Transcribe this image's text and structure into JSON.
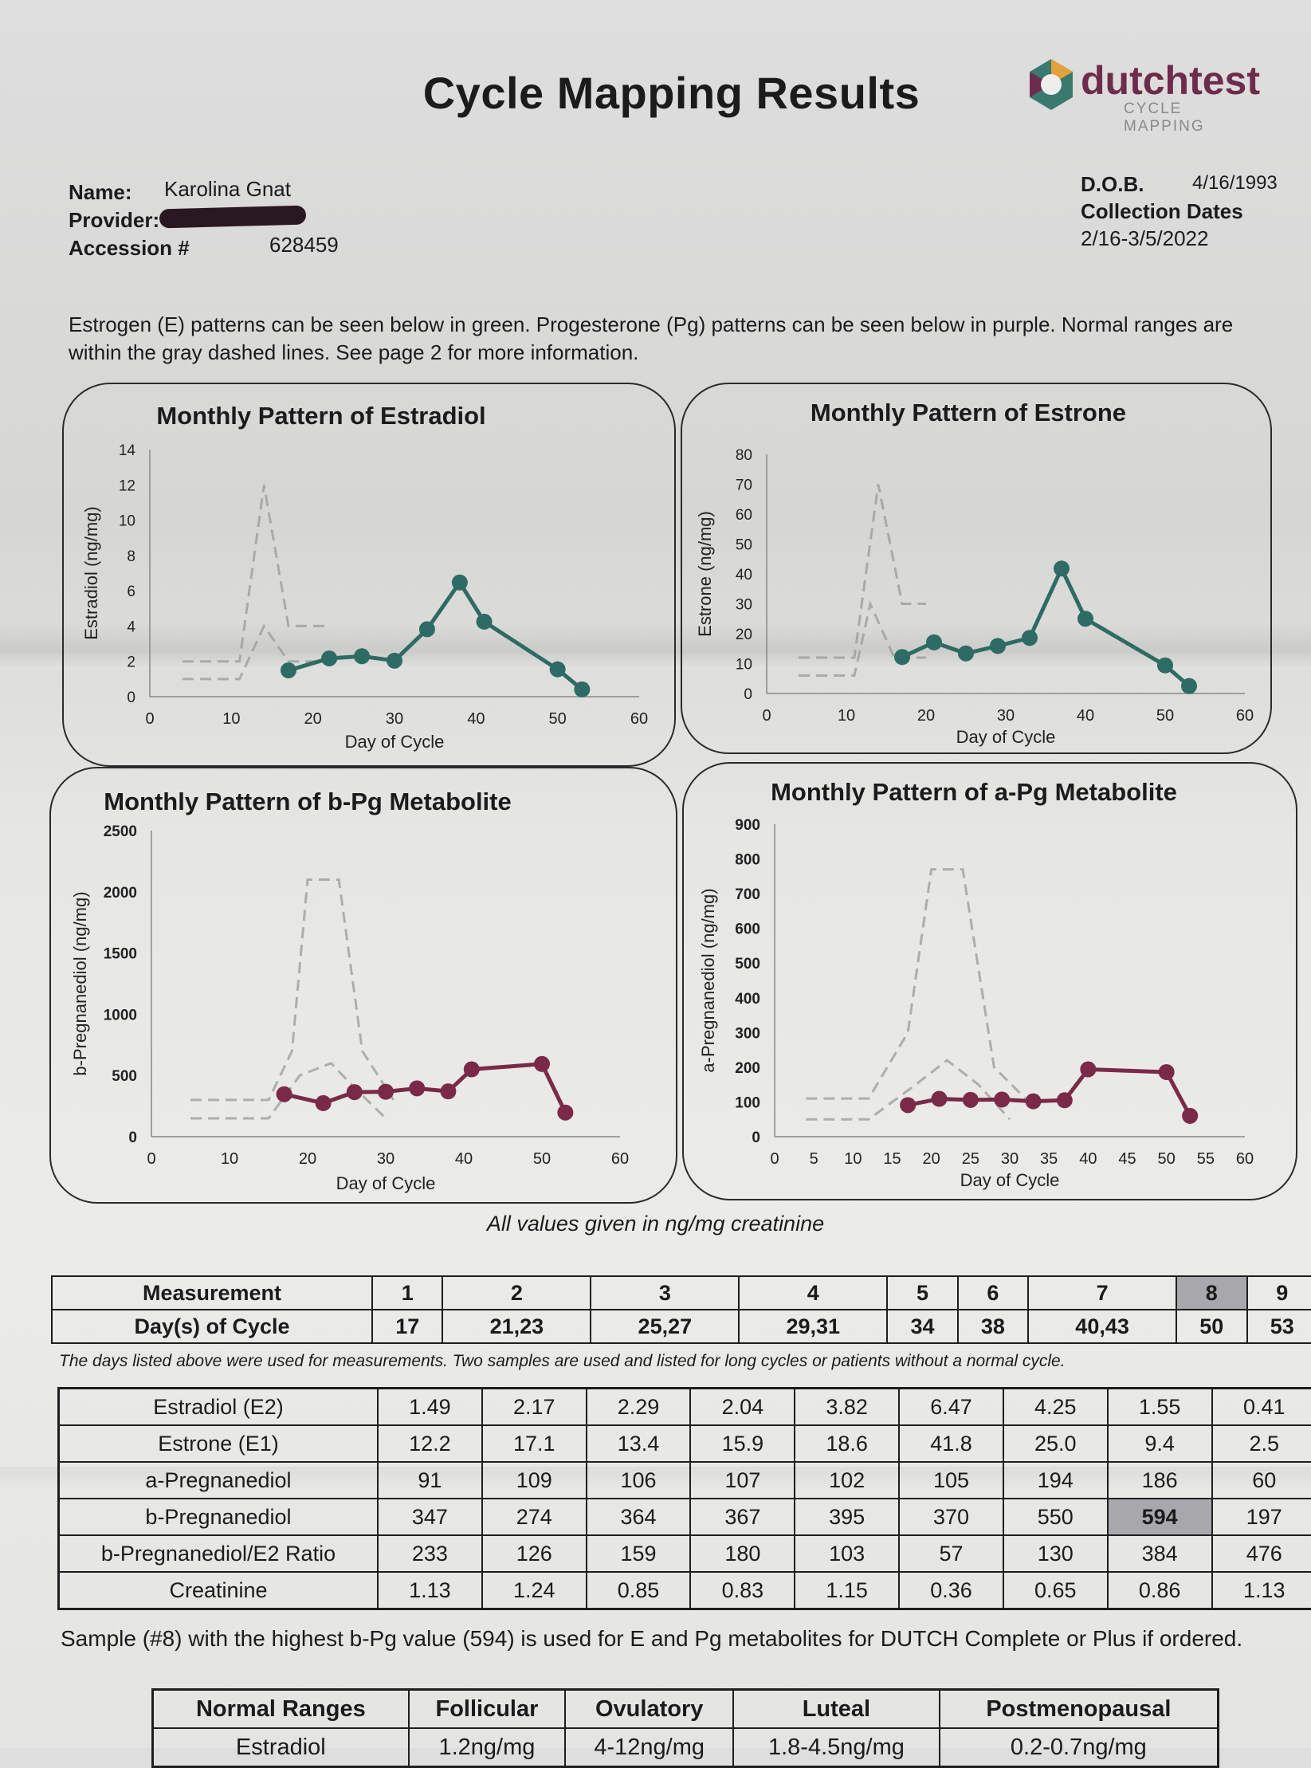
{
  "header": {
    "title": "Cycle Mapping Results",
    "logo_text": "dutchtest",
    "logo_sub": "CYCLE MAPPING"
  },
  "patient": {
    "name_label": "Name:",
    "name": "Karolina Gnat",
    "provider_label": "Provider:",
    "accession_label": "Accession #",
    "accession": "628459",
    "dob_label": "D.O.B.",
    "dob": "4/16/1993",
    "collection_label": "Collection Dates",
    "collection_dates": "2/16-3/5/2022"
  },
  "intro_text": "Estrogen (E) patterns can be seen below in green. Progesterone (Pg) patterns can be seen below in purple. Normal ranges are within the gray dashed lines. See page 2 for more information.",
  "colors": {
    "estrogen": "#2e6b64",
    "progesterone": "#7a2a48",
    "range": "#9a9a9a"
  },
  "chart_data": [
    {
      "type": "line",
      "title": "Monthly Pattern of Estradiol",
      "xlabel": "Day of Cycle",
      "ylabel": "Estradiol (ng/mg)",
      "xlim": [
        0,
        60
      ],
      "ylim": [
        0,
        14
      ],
      "xticks": [
        0,
        10,
        20,
        30,
        40,
        50,
        60
      ],
      "yticks": [
        0,
        2,
        4,
        6,
        8,
        10,
        12,
        14
      ],
      "x": [
        17,
        22,
        26,
        30,
        34,
        38,
        41,
        50,
        53
      ],
      "values": [
        1.49,
        2.17,
        2.29,
        2.04,
        3.82,
        6.47,
        4.25,
        1.55,
        0.41
      ],
      "range_upper": [
        [
          4,
          2
        ],
        [
          11,
          2
        ],
        [
          14,
          12
        ],
        [
          17,
          4
        ],
        [
          22,
          4
        ]
      ],
      "range_lower": [
        [
          4,
          1
        ],
        [
          11,
          1
        ],
        [
          14,
          4
        ],
        [
          17,
          2
        ],
        [
          22,
          2
        ]
      ]
    },
    {
      "type": "line",
      "title": "Monthly Pattern of Estrone",
      "xlabel": "Day of Cycle",
      "ylabel": "Estrone (ng/mg)",
      "xlim": [
        0,
        60
      ],
      "ylim": [
        0,
        80
      ],
      "xticks": [
        0,
        10,
        20,
        30,
        40,
        50,
        60
      ],
      "yticks": [
        0,
        10,
        20,
        30,
        40,
        50,
        60,
        70,
        80
      ],
      "x": [
        17,
        21,
        25,
        29,
        33,
        37,
        40,
        50,
        53
      ],
      "values": [
        12.2,
        17.1,
        13.4,
        15.9,
        18.6,
        41.8,
        25.0,
        9.4,
        2.5
      ],
      "range_upper": [
        [
          4,
          12
        ],
        [
          11,
          12
        ],
        [
          14,
          70
        ],
        [
          17,
          30
        ],
        [
          20,
          30
        ]
      ],
      "range_lower": [
        [
          4,
          6
        ],
        [
          11,
          6
        ],
        [
          13,
          30
        ],
        [
          16,
          12
        ],
        [
          20,
          12
        ]
      ]
    },
    {
      "type": "line",
      "title": "Monthly Pattern of b-Pg Metabolite",
      "xlabel": "Day of Cycle",
      "ylabel": "b-Pregnanediol (ng/mg)",
      "xlim": [
        0,
        60
      ],
      "ylim": [
        0,
        2500
      ],
      "xticks": [
        0,
        10,
        20,
        30,
        40,
        50,
        60
      ],
      "yticks": [
        0,
        500,
        1000,
        1500,
        2000,
        2500
      ],
      "x": [
        17,
        22,
        26,
        30,
        34,
        38,
        41,
        50,
        53
      ],
      "values": [
        347,
        274,
        364,
        367,
        395,
        370,
        550,
        594,
        197
      ],
      "range_upper": [
        [
          5,
          300
        ],
        [
          15,
          300
        ],
        [
          18,
          700
        ],
        [
          20,
          2100
        ],
        [
          24,
          2100
        ],
        [
          27,
          700
        ],
        [
          31,
          300
        ]
      ],
      "range_lower": [
        [
          5,
          150
        ],
        [
          15,
          150
        ],
        [
          19,
          500
        ],
        [
          23,
          600
        ],
        [
          26,
          400
        ],
        [
          30,
          150
        ]
      ]
    },
    {
      "type": "line",
      "title": "Monthly Pattern of a-Pg Metabolite",
      "xlabel": "Day of Cycle",
      "ylabel": "a-Pregnanediol (ng/mg)",
      "xlim": [
        0,
        60
      ],
      "ylim": [
        0,
        900
      ],
      "xticks": [
        0,
        5,
        10,
        15,
        20,
        25,
        30,
        35,
        40,
        45,
        50,
        55,
        60
      ],
      "yticks": [
        0,
        100,
        200,
        300,
        400,
        500,
        600,
        700,
        800,
        900
      ],
      "x": [
        17,
        21,
        25,
        29,
        33,
        37,
        40,
        50,
        53
      ],
      "values": [
        91,
        109,
        106,
        107,
        102,
        105,
        194,
        186,
        60
      ],
      "range_upper": [
        [
          4,
          110
        ],
        [
          12,
          110
        ],
        [
          17,
          300
        ],
        [
          20,
          770
        ],
        [
          24,
          770
        ],
        [
          28,
          200
        ],
        [
          32,
          110
        ]
      ],
      "range_lower": [
        [
          4,
          50
        ],
        [
          12,
          50
        ],
        [
          18,
          150
        ],
        [
          22,
          220
        ],
        [
          26,
          150
        ],
        [
          30,
          50
        ]
      ]
    }
  ],
  "unit_note": "All values given in ng/mg creatinine",
  "measurement_table": {
    "row1": [
      "Measurement",
      "1",
      "2",
      "3",
      "4",
      "5",
      "6",
      "7",
      "8",
      "9"
    ],
    "row2": [
      "Day(s) of Cycle",
      "17",
      "21,23",
      "25,27",
      "29,31",
      "34",
      "38",
      "40,43",
      "50",
      "53"
    ]
  },
  "days_note": "The days listed above were used for measurements. Two samples are used and listed for long cycles or patients without a normal cycle.",
  "values_table": [
    [
      "Estradiol (E2)",
      "1.49",
      "2.17",
      "2.29",
      "2.04",
      "3.82",
      "6.47",
      "4.25",
      "1.55",
      "0.41"
    ],
    [
      "Estrone (E1)",
      "12.2",
      "17.1",
      "13.4",
      "15.9",
      "18.6",
      "41.8",
      "25.0",
      "9.4",
      "2.5"
    ],
    [
      "a-Pregnanediol",
      "91",
      "109",
      "106",
      "107",
      "102",
      "105",
      "194",
      "186",
      "60"
    ],
    [
      "b-Pregnanediol",
      "347",
      "274",
      "364",
      "367",
      "395",
      "370",
      "550",
      "594",
      "197"
    ],
    [
      "b-Pregnanediol/E2 Ratio",
      "233",
      "126",
      "159",
      "180",
      "103",
      "57",
      "130",
      "384",
      "476"
    ],
    [
      "Creatinine",
      "1.13",
      "1.24",
      "0.85",
      "0.83",
      "1.15",
      "0.36",
      "0.65",
      "0.86",
      "1.13"
    ]
  ],
  "sample_note": "Sample (#8) with the highest b-Pg value (594) is used for E and Pg metabolites for DUTCH Complete or Plus if ordered.",
  "ranges_table": {
    "headers": [
      "Normal Ranges",
      "Follicular",
      "Ovulatory",
      "Luteal",
      "Postmenopausal"
    ],
    "row": [
      "Estradiol",
      "1.2ng/mg",
      "4-12ng/mg",
      "1.8-4.5ng/mg",
      "0.2-0.7ng/mg"
    ]
  }
}
